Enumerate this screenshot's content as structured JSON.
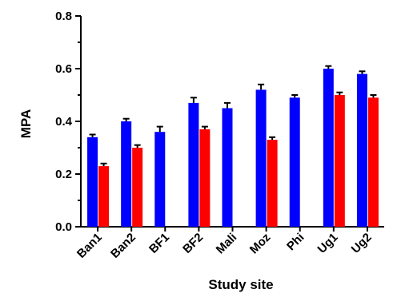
{
  "chart_data": {
    "type": "bar",
    "xlabel": "Study site",
    "ylabel": "MPA",
    "ylim": [
      0,
      0.8
    ],
    "yticks": [
      "0.0",
      "0.2",
      "0.4",
      "0.6",
      "0.8"
    ],
    "categories": [
      "Ban1",
      "Ban2",
      "BF1",
      "BF2",
      "Mali",
      "Moz",
      "Phi",
      "Ug1",
      "Ug2"
    ],
    "series": [
      {
        "color": "#0000ff",
        "values": [
          0.34,
          0.4,
          0.36,
          0.47,
          0.45,
          0.52,
          0.49,
          0.6,
          0.58
        ],
        "errors": [
          0.01,
          0.01,
          0.02,
          0.02,
          0.02,
          0.02,
          0.01,
          0.01,
          0.01
        ]
      },
      {
        "color": "#ff0000",
        "values": [
          0.23,
          0.3,
          null,
          0.37,
          null,
          0.33,
          null,
          0.5,
          0.49
        ],
        "errors": [
          0.01,
          0.01,
          null,
          0.01,
          null,
          0.01,
          null,
          0.01,
          0.01
        ]
      }
    ],
    "grid": false,
    "legend": "none"
  }
}
